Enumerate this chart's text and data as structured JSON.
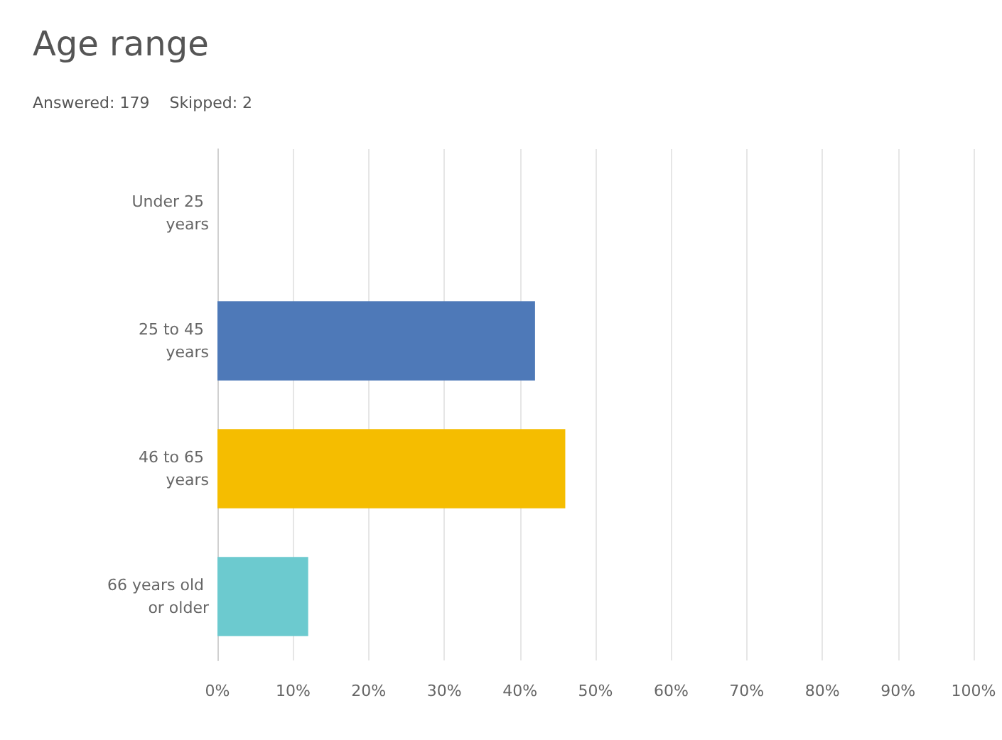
{
  "chart_data": {
    "type": "bar",
    "orientation": "horizontal",
    "title": "Age range",
    "subtitle": "Answered: 179    Skipped: 2",
    "categories": [
      "Under 25 years",
      "25 to 45 years",
      "46 to 65 years",
      "66 years old or older"
    ],
    "values": [
      0,
      42,
      46,
      12
    ],
    "colors": [
      "#4e79b8",
      "#4e79b8",
      "#f5bd00",
      "#6ccacf"
    ],
    "xlim": [
      0,
      100
    ],
    "xticks": [
      {
        "value": 0,
        "label": "0%"
      },
      {
        "value": 10,
        "label": "10%"
      },
      {
        "value": 20,
        "label": "20%"
      },
      {
        "value": 30,
        "label": "30%"
      },
      {
        "value": 40,
        "label": "40%"
      },
      {
        "value": 50,
        "label": "50%"
      },
      {
        "value": 60,
        "label": "60%"
      },
      {
        "value": 70,
        "label": "70%"
      },
      {
        "value": 80,
        "label": "80%"
      },
      {
        "value": 90,
        "label": "90%"
      },
      {
        "value": 100,
        "label": "100%"
      }
    ],
    "grid": "x"
  }
}
